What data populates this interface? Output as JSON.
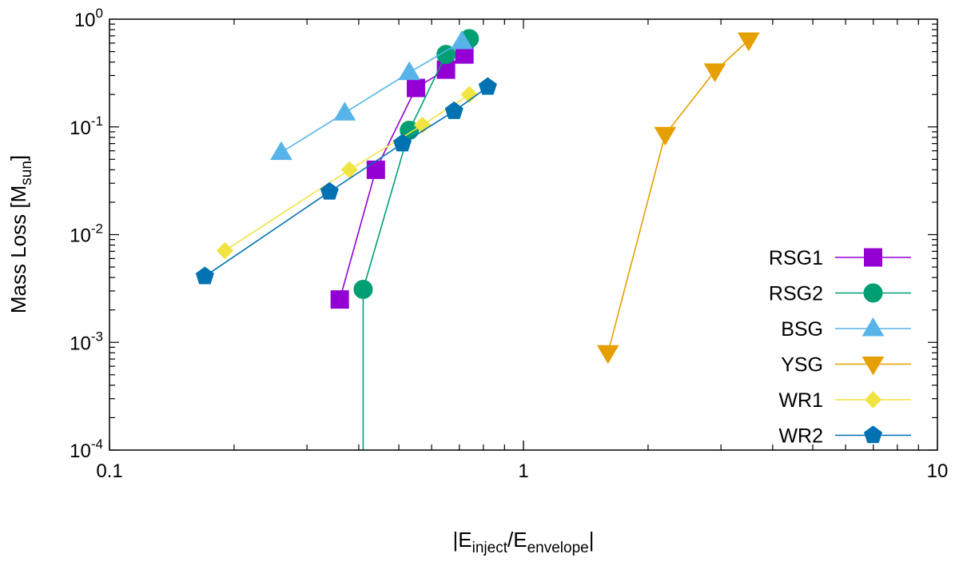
{
  "chart_data": {
    "type": "line",
    "title": "",
    "x_scale": "log",
    "y_scale": "log",
    "xlim": [
      0.1,
      10
    ],
    "ylim": [
      0.0001,
      1
    ],
    "xlabel": {
      "prefix": "|E",
      "sub1": "inject",
      "mid": "/E",
      "sub2": "envelope",
      "suffix": "|"
    },
    "ylabel": {
      "main": "Mass Loss  [M",
      "sub": "sun",
      "suffix": "]"
    },
    "x_ticks": [
      {
        "value": 0.1,
        "label": "0.1"
      },
      {
        "value": 1,
        "label": "1"
      },
      {
        "value": 10,
        "label": "10"
      }
    ],
    "y_ticks": [
      {
        "value": 0.0001,
        "base": "10",
        "exp": "-4"
      },
      {
        "value": 0.001,
        "base": "10",
        "exp": "-3"
      },
      {
        "value": 0.01,
        "base": "10",
        "exp": "-2"
      },
      {
        "value": 0.1,
        "base": "10",
        "exp": "-1"
      },
      {
        "value": 1,
        "base": "10",
        "exp": "0"
      }
    ],
    "legend_position": "bottom-right",
    "series": [
      {
        "name": "RSG1",
        "color": "#9400d3",
        "marker": "square",
        "x": [
          0.36,
          0.44,
          0.55,
          0.65,
          0.72
        ],
        "y": [
          0.0025,
          0.04,
          0.23,
          0.34,
          0.47
        ]
      },
      {
        "name": "RSG2",
        "color": "#009e73",
        "marker": "circle",
        "x": [
          0.41,
          0.41,
          0.53,
          0.65,
          0.74
        ],
        "y": [
          0.0001,
          0.0031,
          0.093,
          0.47,
          0.66
        ]
      },
      {
        "name": "BSG",
        "color": "#56b4e9",
        "marker": "triangle-up",
        "x": [
          0.26,
          0.37,
          0.53,
          0.71
        ],
        "y": [
          0.058,
          0.135,
          0.32,
          0.62
        ]
      },
      {
        "name": "YSG",
        "color": "#e69f00",
        "marker": "triangle-down",
        "x": [
          1.6,
          2.2,
          2.9,
          3.5
        ],
        "y": [
          0.0008,
          0.085,
          0.33,
          0.64
        ]
      },
      {
        "name": "WR1",
        "color": "#f0e442",
        "marker": "diamond",
        "x": [
          0.19,
          0.38,
          0.57,
          0.74
        ],
        "y": [
          0.0071,
          0.04,
          0.104,
          0.2
        ]
      },
      {
        "name": "WR2",
        "color": "#0072b2",
        "marker": "pentagon",
        "x": [
          0.17,
          0.34,
          0.51,
          0.68,
          0.82
        ],
        "y": [
          0.0041,
          0.025,
          0.07,
          0.14,
          0.235
        ]
      }
    ]
  }
}
